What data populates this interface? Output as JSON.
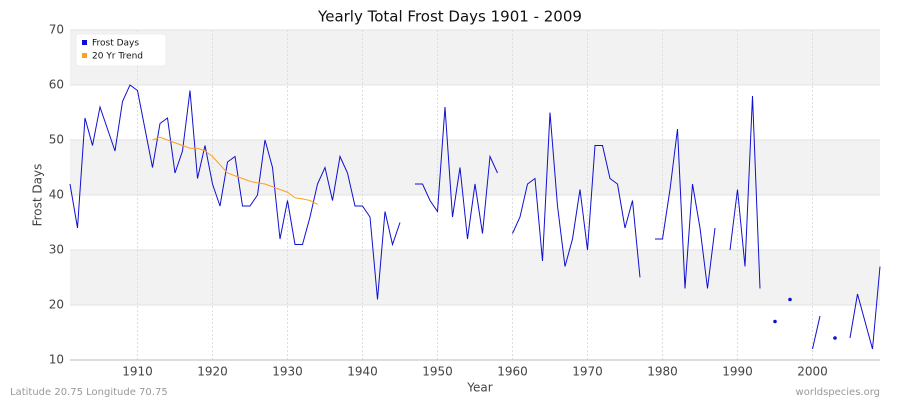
{
  "chart_data": {
    "type": "line",
    "title": "Yearly Total Frost Days 1901 - 2009",
    "x_label": "Year",
    "y_label": "Frost Days",
    "footer_left": "Latitude 20.75 Longitude 70.75",
    "footer_right": "worldspecies.org",
    "x": [
      1901,
      1902,
      1903,
      1904,
      1905,
      1906,
      1907,
      1908,
      1909,
      1910,
      1911,
      1912,
      1913,
      1914,
      1915,
      1916,
      1917,
      1918,
      1919,
      1920,
      1921,
      1922,
      1923,
      1924,
      1925,
      1926,
      1927,
      1928,
      1929,
      1930,
      1931,
      1932,
      1933,
      1934,
      1935,
      1936,
      1937,
      1938,
      1939,
      1940,
      1941,
      1942,
      1943,
      1944,
      1945,
      1946,
      1947,
      1948,
      1949,
      1950,
      1951,
      1952,
      1953,
      1954,
      1955,
      1956,
      1957,
      1958,
      1959,
      1960,
      1961,
      1962,
      1963,
      1964,
      1965,
      1966,
      1967,
      1968,
      1969,
      1970,
      1971,
      1972,
      1973,
      1974,
      1975,
      1976,
      1977,
      1978,
      1979,
      1980,
      1981,
      1982,
      1983,
      1984,
      1985,
      1986,
      1987,
      1988,
      1989,
      1990,
      1991,
      1992,
      1993,
      1994,
      1995,
      1996,
      1997,
      1998,
      1999,
      2000,
      2001,
      2002,
      2003,
      2004,
      2005,
      2006,
      2007,
      2008,
      2009
    ],
    "series": [
      {
        "name": "Frost Days",
        "color": "#1010d0",
        "values": [
          42,
          34,
          54,
          49,
          56,
          52,
          48,
          57,
          60,
          59,
          52,
          45,
          53,
          54,
          44,
          48,
          59,
          43,
          49,
          42,
          38,
          46,
          47,
          38,
          38,
          40,
          50,
          45,
          32,
          39,
          31,
          31,
          36,
          42,
          45,
          39,
          47,
          44,
          38,
          38,
          36,
          21,
          37,
          31,
          35,
          null,
          42,
          42,
          39,
          37,
          56,
          36,
          45,
          32,
          42,
          33,
          47,
          44,
          null,
          33,
          36,
          42,
          43,
          28,
          55,
          38,
          27,
          32,
          41,
          30,
          49,
          49,
          43,
          42,
          34,
          39,
          25,
          null,
          32,
          32,
          41,
          52,
          23,
          42,
          34,
          23,
          34,
          null,
          30,
          41,
          27,
          58,
          23,
          null,
          17,
          null,
          21,
          null,
          null,
          12,
          18,
          null,
          14,
          null,
          14,
          22,
          17,
          12,
          27
        ]
      },
      {
        "name": "20 Yr Trend",
        "color": "#ffa020",
        "values": [
          null,
          null,
          null,
          null,
          null,
          null,
          null,
          null,
          null,
          null,
          null,
          50,
          50.5,
          50,
          49.5,
          49,
          48.5,
          48.5,
          48,
          47,
          45.5,
          44,
          43.5,
          43,
          42.5,
          42.2,
          42,
          41.5,
          41,
          40.5,
          39.5,
          39.3,
          39,
          38.3,
          null,
          null,
          null,
          null,
          null,
          null,
          null,
          null,
          null,
          null,
          null,
          null,
          null,
          null,
          null,
          null,
          null,
          null,
          null,
          null,
          null,
          null,
          null,
          null,
          null,
          null,
          null,
          null,
          null,
          null,
          null,
          null,
          null,
          null,
          null,
          null,
          null,
          null,
          null,
          null,
          null,
          null,
          null,
          null,
          null,
          null,
          null,
          null,
          null,
          null,
          null,
          null,
          null,
          null,
          null,
          null,
          null,
          null,
          null,
          null,
          null,
          null,
          null,
          null,
          null,
          null,
          null,
          null,
          null,
          null,
          null,
          null,
          null,
          null,
          null
        ]
      }
    ],
    "xlim": [
      1901,
      2009
    ],
    "xticks": [
      1910,
      1920,
      1930,
      1940,
      1950,
      1960,
      1970,
      1980,
      1990,
      2000
    ],
    "ylim": [
      10,
      70
    ],
    "yticks": [
      10,
      20,
      30,
      40,
      50,
      60,
      70
    ],
    "grid": true,
    "legend": "upper left"
  }
}
